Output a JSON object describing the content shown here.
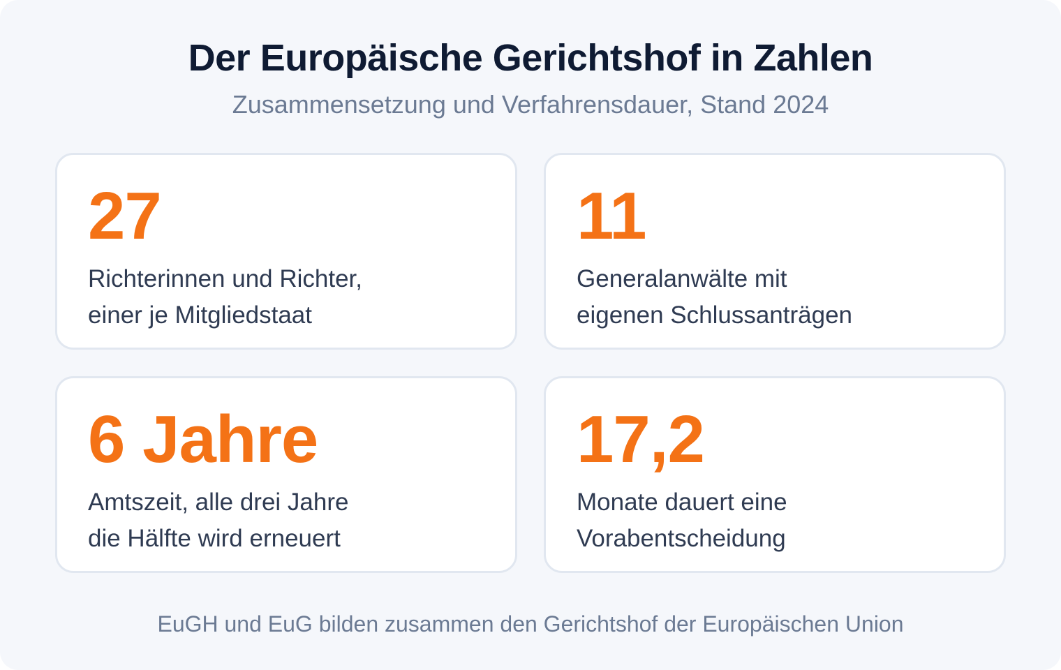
{
  "header": {
    "title": "Der Europäische Gerichtshof in Zahlen",
    "subtitle": "Zusammensetzung und Verfahrensdauer, Stand 2024"
  },
  "stats": [
    {
      "value": "27",
      "lines": [
        "Richterinnen und Richter,",
        "einer je Mitgliedstaat"
      ]
    },
    {
      "value": "11",
      "lines": [
        "Generalanwälte mit",
        "eigenen Schlussanträgen"
      ]
    },
    {
      "value": "6 Jahre",
      "lines": [
        "Amtszeit, alle drei Jahre",
        "die Hälfte wird erneuert"
      ]
    },
    {
      "value": "17,2",
      "lines": [
        "Monate dauert eine",
        "Vorabentscheidung"
      ]
    }
  ],
  "footer": {
    "note": "EuGH und EuG bilden zusammen den Gerichtshof der Europäischen Union"
  },
  "colors": {
    "accent": "#f47216",
    "title": "#0f1b33",
    "muted": "#6b7a93",
    "background": "#f5f7fb",
    "card_border": "#e1e7f0"
  }
}
